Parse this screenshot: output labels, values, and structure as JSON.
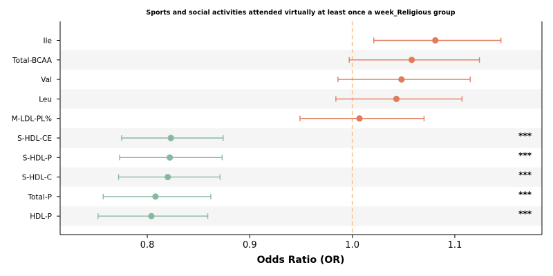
{
  "chart_data": {
    "type": "forest",
    "title": "Sports and social activities attended virtually at least once a week_Religious group",
    "xlabel": "Odds Ratio (OR)",
    "ylabel": "",
    "xlim": [
      0.715,
      1.185
    ],
    "xticks": [
      0.8,
      0.9,
      1.0,
      1.1
    ],
    "xtick_labels": [
      "0.8",
      "0.9",
      "1.0",
      "1.1"
    ],
    "reference_line": 1.0,
    "grid": false,
    "row_banding": true,
    "colors": {
      "positive": "#e07b5b",
      "negative": "#86b9a0",
      "reference": "#f6c58a",
      "band": "#f5f5f5"
    },
    "rows": [
      {
        "label": "Ile",
        "or": 1.081,
        "lower": 1.021,
        "upper": 1.145,
        "sig": ""
      },
      {
        "label": "Total-BCAA",
        "or": 1.058,
        "lower": 0.997,
        "upper": 1.124,
        "sig": ""
      },
      {
        "label": "Val",
        "or": 1.048,
        "lower": 0.986,
        "upper": 1.115,
        "sig": ""
      },
      {
        "label": "Leu",
        "or": 1.043,
        "lower": 0.984,
        "upper": 1.107,
        "sig": ""
      },
      {
        "label": "M-LDL-PL%",
        "or": 1.007,
        "lower": 0.949,
        "upper": 1.07,
        "sig": ""
      },
      {
        "label": "S-HDL-CE",
        "or": 0.823,
        "lower": 0.775,
        "upper": 0.874,
        "sig": "***"
      },
      {
        "label": "S-HDL-P",
        "or": 0.822,
        "lower": 0.773,
        "upper": 0.873,
        "sig": "***"
      },
      {
        "label": "S-HDL-C",
        "or": 0.82,
        "lower": 0.772,
        "upper": 0.871,
        "sig": "***"
      },
      {
        "label": "Total-P",
        "or": 0.808,
        "lower": 0.757,
        "upper": 0.862,
        "sig": "***"
      },
      {
        "label": "HDL-P",
        "or": 0.804,
        "lower": 0.752,
        "upper": 0.859,
        "sig": "***"
      }
    ]
  }
}
